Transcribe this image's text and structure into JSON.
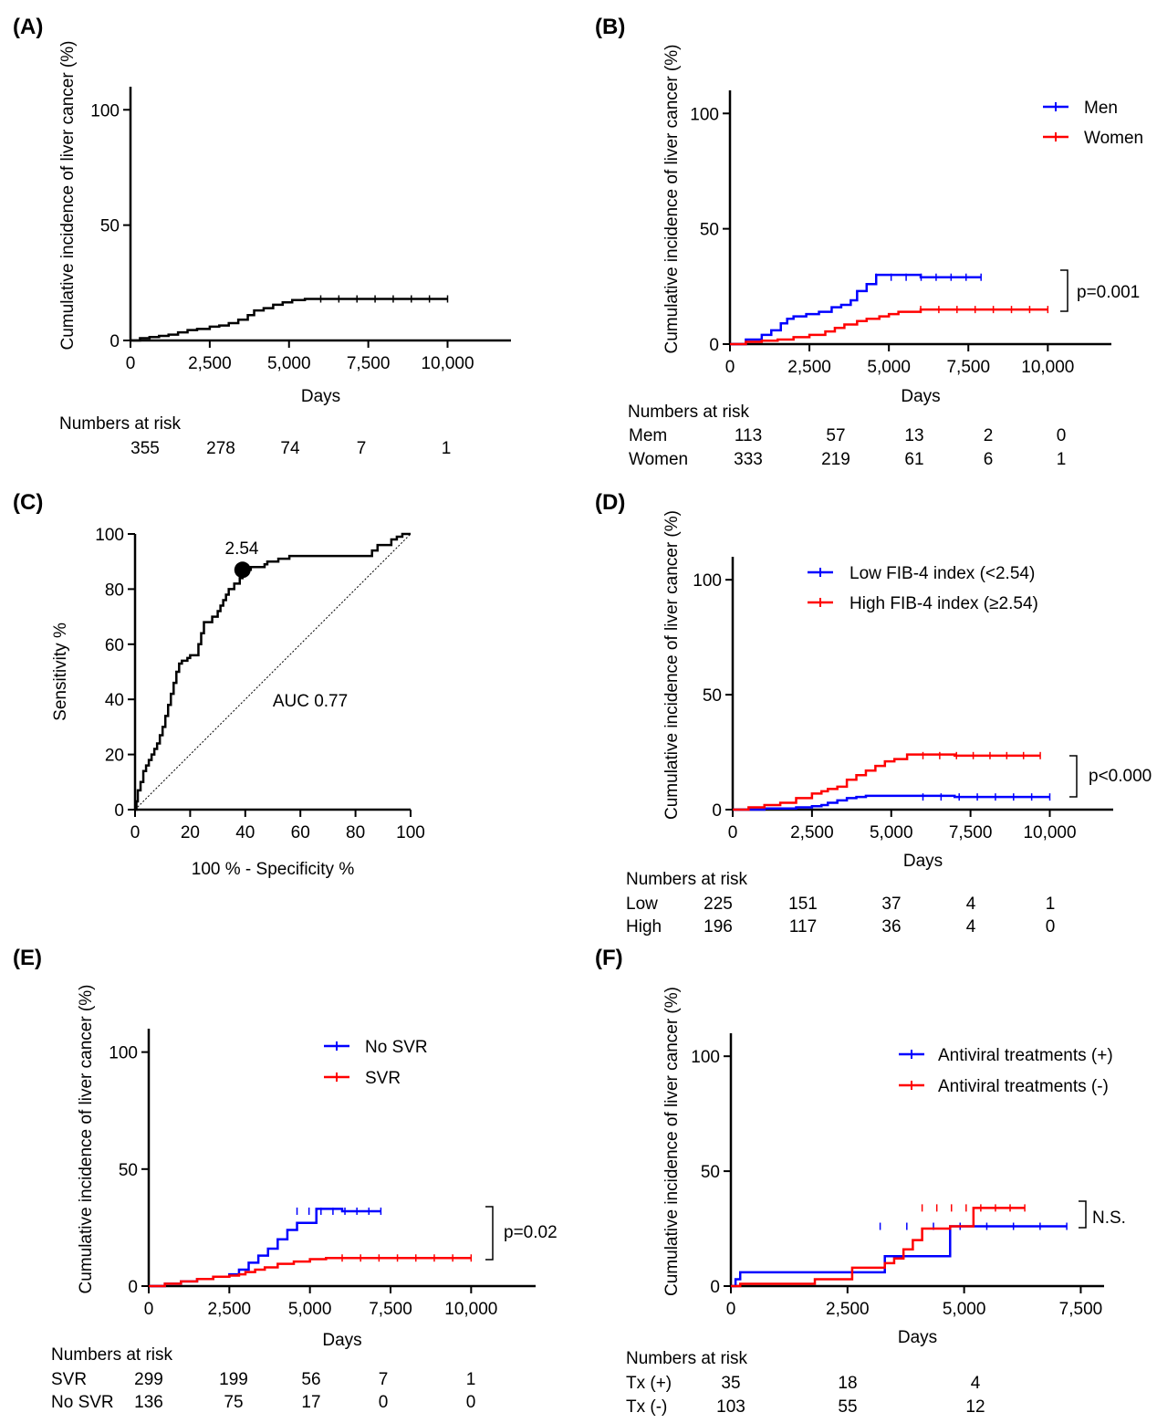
{
  "colors": {
    "men": "#0000ff",
    "women": "#ff0000",
    "black": "#000000"
  },
  "chart_data": [
    {
      "panel": "(A)",
      "type": "line",
      "ylabel": "Cumulative incidence of liver cancer (%)",
      "xlabel": "Days",
      "xlim": [
        0,
        12000
      ],
      "ylim": [
        0,
        110
      ],
      "xticks": [
        "0",
        "2,500",
        "5,000",
        "7,500",
        "10,000"
      ],
      "yticks": [
        "0",
        "50",
        "100"
      ],
      "series": [
        {
          "color": "#000000",
          "x": [
            0,
            300,
            600,
            900,
            1200,
            1500,
            1800,
            2100,
            2500,
            2800,
            3100,
            3400,
            3700,
            3900,
            4200,
            4500,
            4800,
            5100,
            5500,
            6000,
            7000,
            8000,
            9000,
            10000
          ],
          "y": [
            0,
            1,
            1.5,
            2,
            2.5,
            3.5,
            4.5,
            5,
            6,
            6.5,
            7.5,
            9,
            11,
            13,
            14,
            15.5,
            16.5,
            17.5,
            18,
            18,
            18,
            18,
            18,
            18
          ]
        }
      ],
      "risk_title": "Numbers at risk",
      "risk_rows": [
        {
          "label": "",
          "values": [
            "355",
            "278",
            "74",
            "7",
            "1"
          ]
        }
      ]
    },
    {
      "panel": "(B)",
      "type": "line",
      "ylabel": "Cumulative incidence of liver cancer (%)",
      "xlabel": "Days",
      "xlim": [
        0,
        12000
      ],
      "ylim": [
        0,
        110
      ],
      "xticks": [
        "0",
        "2,500",
        "5,000",
        "7,500",
        "10,000"
      ],
      "yticks": [
        "0",
        "50",
        "100"
      ],
      "legend": [
        "Men",
        "Women"
      ],
      "annotation": "p=0.001",
      "series": [
        {
          "name": "Men",
          "color": "#0000ff",
          "x": [
            0,
            500,
            800,
            1000,
            1300,
            1600,
            1800,
            2000,
            2400,
            2800,
            3200,
            3500,
            3800,
            4000,
            4300,
            4600,
            5000,
            6000,
            7000,
            7900
          ],
          "y": [
            0,
            2,
            2,
            4,
            6,
            9,
            11,
            12,
            13,
            14,
            16,
            17,
            19,
            23,
            26,
            30,
            30,
            29,
            29,
            29
          ]
        },
        {
          "name": "Women",
          "color": "#ff0000",
          "x": [
            0,
            500,
            1000,
            1500,
            2000,
            2500,
            3000,
            3300,
            3600,
            4000,
            4300,
            4700,
            5000,
            5300,
            6000,
            7000,
            8000,
            9000,
            10000
          ],
          "y": [
            0,
            1,
            1.5,
            2,
            3,
            4,
            5.5,
            7,
            8.5,
            10,
            11,
            12,
            13,
            14,
            15,
            15,
            15,
            15,
            15
          ]
        }
      ],
      "risk_title": "Numbers at risk",
      "risk_rows": [
        {
          "label": "Mem",
          "values": [
            "113",
            "57",
            "13",
            "2",
            "0"
          ]
        },
        {
          "label": "Women",
          "values": [
            "333",
            "219",
            "61",
            "6",
            "1"
          ]
        }
      ]
    },
    {
      "panel": "(C)",
      "type": "line",
      "ylabel": "Sensitivity %",
      "xlabel": "100 % - Specificity %",
      "xlim": [
        0,
        100
      ],
      "ylim": [
        0,
        100
      ],
      "xticks": [
        "0",
        "20",
        "40",
        "60",
        "80",
        "100"
      ],
      "yticks": [
        "0",
        "20",
        "40",
        "60",
        "80",
        "100"
      ],
      "annotation": "AUC 0.77",
      "point_label": "2.54",
      "point": [
        39,
        87
      ],
      "series": [
        {
          "color": "#000000",
          "x": [
            0,
            0.5,
            1,
            2,
            3,
            4,
            5,
            6,
            7,
            8,
            9,
            10,
            11,
            12,
            13,
            14,
            15,
            16,
            17,
            18,
            19,
            20,
            21,
            22,
            23,
            24,
            25,
            26,
            28,
            30,
            31,
            32,
            33,
            34,
            36,
            38,
            39,
            40,
            41,
            42,
            44,
            46,
            47,
            48,
            50,
            52,
            54,
            56,
            60,
            66,
            72,
            76,
            78,
            82,
            85,
            86,
            88,
            90,
            92,
            93,
            95,
            97,
            100
          ],
          "y": [
            0,
            3,
            7,
            10,
            14,
            16,
            18,
            20,
            22,
            24,
            27,
            30,
            34,
            38,
            42,
            46,
            50,
            53,
            54,
            54,
            55,
            56,
            56,
            56,
            60,
            64,
            68,
            68,
            70,
            72,
            74,
            76,
            78,
            80,
            82,
            84,
            85,
            86,
            87,
            88,
            88,
            88,
            89,
            90,
            90,
            91,
            91,
            92,
            92,
            92,
            92,
            92,
            92,
            92,
            92,
            94,
            96,
            96,
            96,
            98,
            99,
            100,
            100
          ]
        }
      ]
    },
    {
      "panel": "(D)",
      "type": "line",
      "ylabel": "Cumulative incidence of liver cancer (%)",
      "xlabel": "Days",
      "xlim": [
        0,
        12000
      ],
      "ylim": [
        0,
        110
      ],
      "xticks": [
        "0",
        "2,500",
        "5,000",
        "7,500",
        "10,000"
      ],
      "yticks": [
        "0",
        "50",
        "100"
      ],
      "legend": [
        "Low FIB-4 index (<2.54)",
        "High FIB-4 index (≥2.54)"
      ],
      "annotation": "p<0.000",
      "series": [
        {
          "name": "Low FIB-4 index (<2.54)",
          "color": "#0000ff",
          "x": [
            0,
            1000,
            2000,
            2500,
            2800,
            3000,
            3300,
            3600,
            3900,
            4200,
            4500,
            5000,
            6000,
            7000,
            8000,
            9000,
            10000
          ],
          "y": [
            0,
            0.5,
            1,
            1.5,
            2,
            3,
            4,
            5,
            5.5,
            6,
            6,
            6,
            6,
            5.5,
            5.5,
            5.5,
            5.5
          ]
        },
        {
          "name": "High FIB-4 index (≥2.54)",
          "color": "#ff0000",
          "x": [
            0,
            500,
            1000,
            1500,
            2000,
            2500,
            2800,
            3000,
            3300,
            3600,
            3900,
            4200,
            4500,
            4800,
            5100,
            5500,
            6000,
            7000,
            8000,
            9000,
            9700
          ],
          "y": [
            0,
            1,
            2,
            3,
            5,
            7,
            8,
            9,
            10,
            13,
            15,
            17,
            19,
            21,
            22,
            24,
            24,
            23.5,
            23.5,
            23.5,
            23.5
          ]
        }
      ],
      "risk_title": "Numbers at risk",
      "risk_rows": [
        {
          "label": "Low",
          "values": [
            "225",
            "151",
            "37",
            "4",
            "1"
          ]
        },
        {
          "label": "High",
          "values": [
            "196",
            "117",
            "36",
            "4",
            "0"
          ]
        }
      ]
    },
    {
      "panel": "(E)",
      "type": "line",
      "ylabel": "Cumulative incidence of liver cancer (%)",
      "xlabel": "Days",
      "xlim": [
        0,
        12000
      ],
      "ylim": [
        0,
        110
      ],
      "xticks": [
        "0",
        "2,500",
        "5,000",
        "7,500",
        "10,000"
      ],
      "yticks": [
        "0",
        "50",
        "100"
      ],
      "legend": [
        "No SVR",
        "SVR"
      ],
      "annotation": "p=0.02",
      "series": [
        {
          "name": "No SVR",
          "color": "#0000ff",
          "x": [
            0,
            500,
            1000,
            1500,
            2000,
            2500,
            2800,
            3100,
            3400,
            3700,
            4000,
            4300,
            4600,
            5000,
            5200,
            6000,
            7200
          ],
          "y": [
            0,
            1,
            2,
            3,
            4,
            5,
            7,
            10,
            13,
            16,
            20,
            24,
            27,
            27,
            33,
            32,
            32
          ]
        },
        {
          "name": "SVR",
          "color": "#ff0000",
          "x": [
            0,
            500,
            1000,
            1500,
            2000,
            2500,
            2800,
            3000,
            3300,
            3600,
            4000,
            4500,
            5000,
            5500,
            6000,
            7000,
            8000,
            9000,
            10000
          ],
          "y": [
            0,
            1,
            2,
            3,
            4,
            4.5,
            5,
            6,
            7,
            8,
            9.5,
            10.5,
            11.5,
            12,
            12,
            12,
            12,
            12,
            12
          ]
        }
      ],
      "risk_title": "Numbers at risk",
      "risk_rows": [
        {
          "label": "SVR",
          "values": [
            "299",
            "199",
            "56",
            "7",
            "1"
          ]
        },
        {
          "label": "No SVR",
          "values": [
            "136",
            "75",
            "17",
            "0",
            "0"
          ]
        }
      ]
    },
    {
      "panel": "(F)",
      "type": "line",
      "ylabel": "Cumulative incidence of liver cancer (%)",
      "xlabel": "Days",
      "xlim": [
        0,
        8000
      ],
      "ylim": [
        0,
        110
      ],
      "xticks": [
        "0",
        "2,500",
        "5,000",
        "7,500"
      ],
      "yticks": [
        "0",
        "50",
        "100"
      ],
      "legend": [
        "Antiviral treatments (+)",
        "Antiviral treatments (-)"
      ],
      "annotation": "N.S.",
      "series": [
        {
          "name": "Antiviral treatments (+)",
          "color": "#0000ff",
          "x": [
            0,
            100,
            200,
            3200,
            3300,
            4600,
            4700,
            7200
          ],
          "y": [
            0,
            3,
            6,
            6,
            13,
            13,
            26,
            26
          ]
        },
        {
          "name": "Antiviral treatments (-)",
          "color": "#ff0000",
          "x": [
            0,
            200,
            1700,
            1800,
            2500,
            2600,
            3300,
            3500,
            3700,
            3900,
            4100,
            4300,
            4700,
            5200,
            6300
          ],
          "y": [
            0,
            1,
            1,
            3,
            3,
            8,
            10,
            12,
            16,
            20,
            25,
            25,
            26,
            34,
            34
          ]
        }
      ],
      "risk_title": "Numbers at risk",
      "risk_rows": [
        {
          "label": "Tx (+)",
          "values": [
            "35",
            "18",
            "4"
          ]
        },
        {
          "label": "Tx (-)",
          "values": [
            "103",
            "55",
            "12"
          ]
        }
      ]
    }
  ]
}
